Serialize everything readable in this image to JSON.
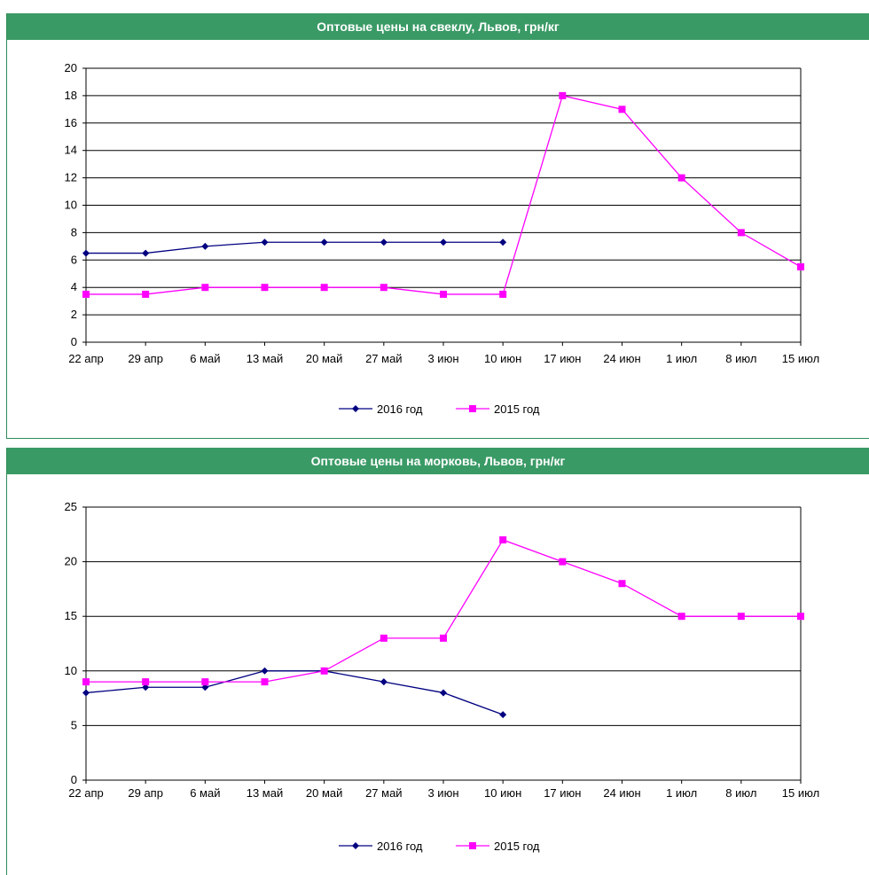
{
  "charts": [
    {
      "header": "Оптовые цены на свеклу, Львов, грн/кг",
      "legend": [
        {
          "label": "2016 год",
          "color": "#000080",
          "marker": "diamond"
        },
        {
          "label": "2015 год",
          "color": "#ff00ff",
          "marker": "square"
        }
      ]
    },
    {
      "header": "Оптовые цены на морковь, Львов, грн/кг",
      "legend": [
        {
          "label": "2016 год",
          "color": "#000080",
          "marker": "diamond"
        },
        {
          "label": "2015 год",
          "color": "#ff00ff",
          "marker": "square"
        }
      ]
    }
  ],
  "chart_data": [
    {
      "type": "line",
      "title": "Оптовые цены на свеклу, Львов, грн/кг",
      "xlabel": "",
      "ylabel": "",
      "categories": [
        "22 апр",
        "29 апр",
        "6 май",
        "13 май",
        "20 май",
        "27 май",
        "3 июн",
        "10 июн",
        "17 июн",
        "24 июн",
        "1 июл",
        "8 июл",
        "15 июл"
      ],
      "ylim": [
        0,
        20
      ],
      "yticks": [
        0,
        2,
        4,
        6,
        8,
        10,
        12,
        14,
        16,
        18,
        20
      ],
      "grid": true,
      "legend_position": "bottom",
      "series": [
        {
          "name": "2016 год",
          "color": "#000080",
          "marker": "diamond",
          "values": [
            6.5,
            6.5,
            7.0,
            7.3,
            7.3,
            7.3,
            7.3,
            7.3,
            null,
            null,
            null,
            null,
            null
          ]
        },
        {
          "name": "2015 год",
          "color": "#ff00ff",
          "marker": "square",
          "values": [
            3.5,
            3.5,
            4.0,
            4.0,
            4.0,
            4.0,
            3.5,
            3.5,
            18.0,
            17.0,
            12.0,
            8.0,
            5.5
          ]
        }
      ]
    },
    {
      "type": "line",
      "title": "Оптовые цены на морковь, Львов, грн/кг",
      "xlabel": "",
      "ylabel": "",
      "categories": [
        "22 апр",
        "29 апр",
        "6 май",
        "13 май",
        "20 май",
        "27 май",
        "3 июн",
        "10 июн",
        "17 июн",
        "24 июн",
        "1 июл",
        "8 июл",
        "15 июл"
      ],
      "ylim": [
        0,
        25
      ],
      "yticks": [
        0,
        5,
        10,
        15,
        20,
        25
      ],
      "grid": true,
      "legend_position": "bottom",
      "series": [
        {
          "name": "2016 год",
          "color": "#000080",
          "marker": "diamond",
          "values": [
            8.0,
            8.5,
            8.5,
            10.0,
            10.0,
            9.0,
            8.0,
            6.0,
            null,
            null,
            null,
            null,
            null
          ]
        },
        {
          "name": "2015 год",
          "color": "#ff00ff",
          "marker": "square",
          "values": [
            9.0,
            9.0,
            9.0,
            9.0,
            10.0,
            13.0,
            13.0,
            22.0,
            20.0,
            18.0,
            15.0,
            15.0,
            15.0
          ]
        }
      ]
    }
  ]
}
